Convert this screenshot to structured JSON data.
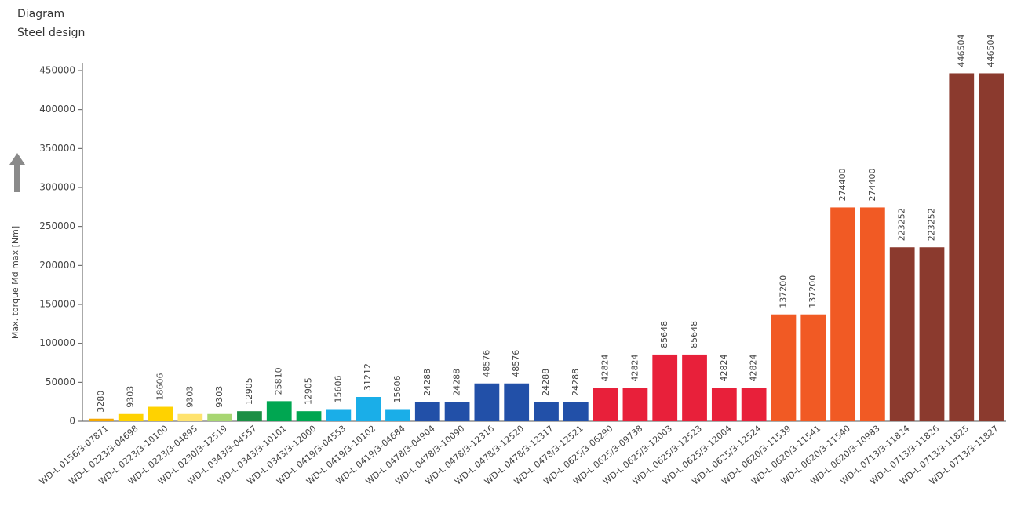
{
  "chart_data": {
    "type": "bar",
    "title": "Diagram",
    "subtitle": "Steel design",
    "y_label": "Max. torque Md max [Nm]",
    "categories": [
      "WD-L 0156/3-07871",
      "WD-L 0223/3-04698",
      "WD-L 0223/3-10100",
      "WD-L 0223/3-04895",
      "WD-L 0230/3-12519",
      "WD-L 0343/3-04557",
      "WD-L 0343/3-10101",
      "WD-L 0343/3-12000",
      "WD-L 0419/3-04553",
      "WD-L 0419/3-10102",
      "WD-L 0419/3-04684",
      "WD-L 0478/3-04904",
      "WD-L 0478/3-10090",
      "WD-L 0478/3-12316",
      "WD-L 0478/3-12520",
      "WD-L 0478/3-12317",
      "WD-L 0478/3-12521",
      "WD-L 0625/3-06290",
      "WD-L 0625/3-09738",
      "WD-L 0625/3-12003",
      "WD-L 0625/3-12523",
      "WD-L 0625/3-12004",
      "WD-L 0625/3-12524",
      "WD-L 0620/3-11539",
      "WD-L 0620/3-11541",
      "WD-L 0620/3-11540",
      "WD-L 0620/3-10983",
      "WD-L 0713/3-11824",
      "WD-L 0713/3-11826",
      "WD-L 0713/3-11825",
      "WD-L 0713/3-11827"
    ],
    "values": [
      3280,
      9303,
      18606,
      9303,
      9303,
      12905,
      25810,
      12905,
      15606,
      31212,
      15606,
      24288,
      24288,
      48576,
      48576,
      24288,
      24288,
      42824,
      42824,
      85648,
      85648,
      42824,
      42824,
      137200,
      137200,
      274400,
      274400,
      223252,
      223252,
      446504,
      446504
    ],
    "colors": [
      "#f5a800",
      "#ffd200",
      "#ffd200",
      "#ffe36e",
      "#a8d672",
      "#1c8f45",
      "#00a651",
      "#00a651",
      "#1aaee8",
      "#1aaee8",
      "#1aaee8",
      "#2250a8",
      "#2250a8",
      "#2250a8",
      "#2250a8",
      "#2250a8",
      "#2250a8",
      "#e8203a",
      "#e8203a",
      "#e8203a",
      "#e8203a",
      "#e8203a",
      "#e8203a",
      "#f15a24",
      "#f15a24",
      "#f15a24",
      "#f15a24",
      "#8b3a2e",
      "#8b3a2e",
      "#8b3a2e",
      "#8b3a2e"
    ],
    "ylim": [
      0,
      450000
    ],
    "yticks": [
      0,
      50000,
      100000,
      150000,
      200000,
      250000,
      300000,
      350000,
      400000,
      450000
    ]
  }
}
